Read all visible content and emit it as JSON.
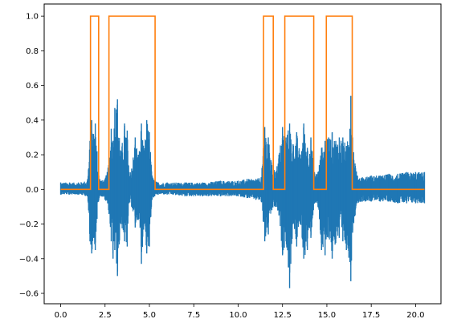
{
  "chart_data": {
    "type": "line",
    "title": "",
    "xlabel": "",
    "ylabel": "",
    "xlim": [
      -0.93,
      21.43
    ],
    "ylim": [
      -0.66,
      1.07
    ],
    "grid": false,
    "legend": "none",
    "x_ticks": [
      0.0,
      2.5,
      5.0,
      7.5,
      10.0,
      12.5,
      15.0,
      17.5,
      20.0
    ],
    "x_tick_labels": [
      "0.0",
      "2.5",
      "5.0",
      "7.5",
      "10.0",
      "12.5",
      "15.0",
      "17.5",
      "20.0"
    ],
    "y_ticks": [
      -0.6,
      -0.4,
      -0.2,
      0.0,
      0.2,
      0.4,
      0.6,
      0.8,
      1.0
    ],
    "y_tick_labels": [
      "−0.6",
      "−0.4",
      "−0.2",
      "0.0",
      "0.2",
      "0.4",
      "0.6",
      "0.8",
      "1.0"
    ],
    "series": [
      {
        "color": "#1f77b4",
        "kind": "signal-envelope",
        "x": [
          0.0,
          0.5,
          1.0,
          1.5,
          1.65,
          1.75,
          1.85,
          1.95,
          2.05,
          2.15,
          2.3,
          2.5,
          2.7,
          2.85,
          2.95,
          3.05,
          3.2,
          3.4,
          3.6,
          3.75,
          3.85,
          4.0,
          4.2,
          4.4,
          4.55,
          4.7,
          4.85,
          5.0,
          5.15,
          5.3,
          5.5,
          6.0,
          7.0,
          8.0,
          9.0,
          10.0,
          10.5,
          11.0,
          11.3,
          11.5,
          11.7,
          11.9,
          12.1,
          12.3,
          12.5,
          12.7,
          12.9,
          13.1,
          13.3,
          13.5,
          13.7,
          13.9,
          14.1,
          14.3,
          14.5,
          14.7,
          14.9,
          15.1,
          15.3,
          15.5,
          15.7,
          15.9,
          16.1,
          16.3,
          16.35,
          16.45,
          16.7,
          17.0,
          17.5,
          18.0,
          18.5,
          19.0,
          19.5,
          20.0,
          20.5
        ],
        "upper": [
          0.04,
          0.04,
          0.04,
          0.05,
          0.28,
          0.4,
          0.32,
          0.38,
          0.22,
          0.08,
          0.05,
          0.06,
          0.14,
          0.35,
          0.28,
          0.47,
          0.52,
          0.22,
          0.38,
          0.34,
          0.1,
          0.12,
          0.3,
          0.2,
          0.38,
          0.22,
          0.4,
          0.33,
          0.08,
          0.05,
          0.04,
          0.04,
          0.04,
          0.04,
          0.05,
          0.05,
          0.06,
          0.06,
          0.07,
          0.36,
          0.3,
          0.14,
          0.1,
          0.2,
          0.36,
          0.3,
          0.38,
          0.26,
          0.33,
          0.2,
          0.38,
          0.24,
          0.3,
          0.1,
          0.1,
          0.24,
          0.28,
          0.3,
          0.33,
          0.28,
          0.3,
          0.3,
          0.25,
          0.35,
          0.54,
          0.3,
          0.08,
          0.07,
          0.08,
          0.08,
          0.09,
          0.09,
          0.1,
          0.1,
          0.1
        ],
        "lower": [
          -0.03,
          -0.03,
          -0.03,
          -0.04,
          -0.3,
          -0.37,
          -0.28,
          -0.35,
          -0.17,
          -0.06,
          -0.04,
          -0.06,
          -0.12,
          -0.3,
          -0.4,
          -0.35,
          -0.5,
          -0.2,
          -0.3,
          -0.33,
          -0.08,
          -0.1,
          -0.22,
          -0.17,
          -0.43,
          -0.2,
          -0.37,
          -0.33,
          -0.06,
          -0.04,
          -0.03,
          -0.03,
          -0.04,
          -0.04,
          -0.04,
          -0.04,
          -0.05,
          -0.06,
          -0.07,
          -0.3,
          -0.26,
          -0.12,
          -0.1,
          -0.15,
          -0.38,
          -0.3,
          -0.57,
          -0.2,
          -0.33,
          -0.2,
          -0.4,
          -0.35,
          -0.28,
          -0.08,
          -0.1,
          -0.35,
          -0.38,
          -0.27,
          -0.4,
          -0.31,
          -0.28,
          -0.3,
          -0.35,
          -0.42,
          -0.53,
          -0.25,
          -0.08,
          -0.07,
          -0.07,
          -0.07,
          -0.07,
          -0.08,
          -0.08,
          -0.08,
          -0.08
        ]
      },
      {
        "color": "#ff7f0e",
        "kind": "step",
        "x": [
          0.0,
          1.68,
          1.68,
          2.14,
          2.14,
          2.72,
          2.72,
          5.32,
          5.32,
          11.43,
          11.43,
          11.98,
          11.98,
          12.63,
          12.63,
          14.26,
          14.26,
          14.97,
          14.97,
          16.43,
          16.43,
          20.5
        ],
        "y": [
          0,
          0,
          1,
          1,
          0,
          0,
          1,
          1,
          0,
          0,
          1,
          1,
          0,
          0,
          1,
          1,
          0,
          0,
          1,
          1,
          0,
          0
        ]
      }
    ]
  }
}
